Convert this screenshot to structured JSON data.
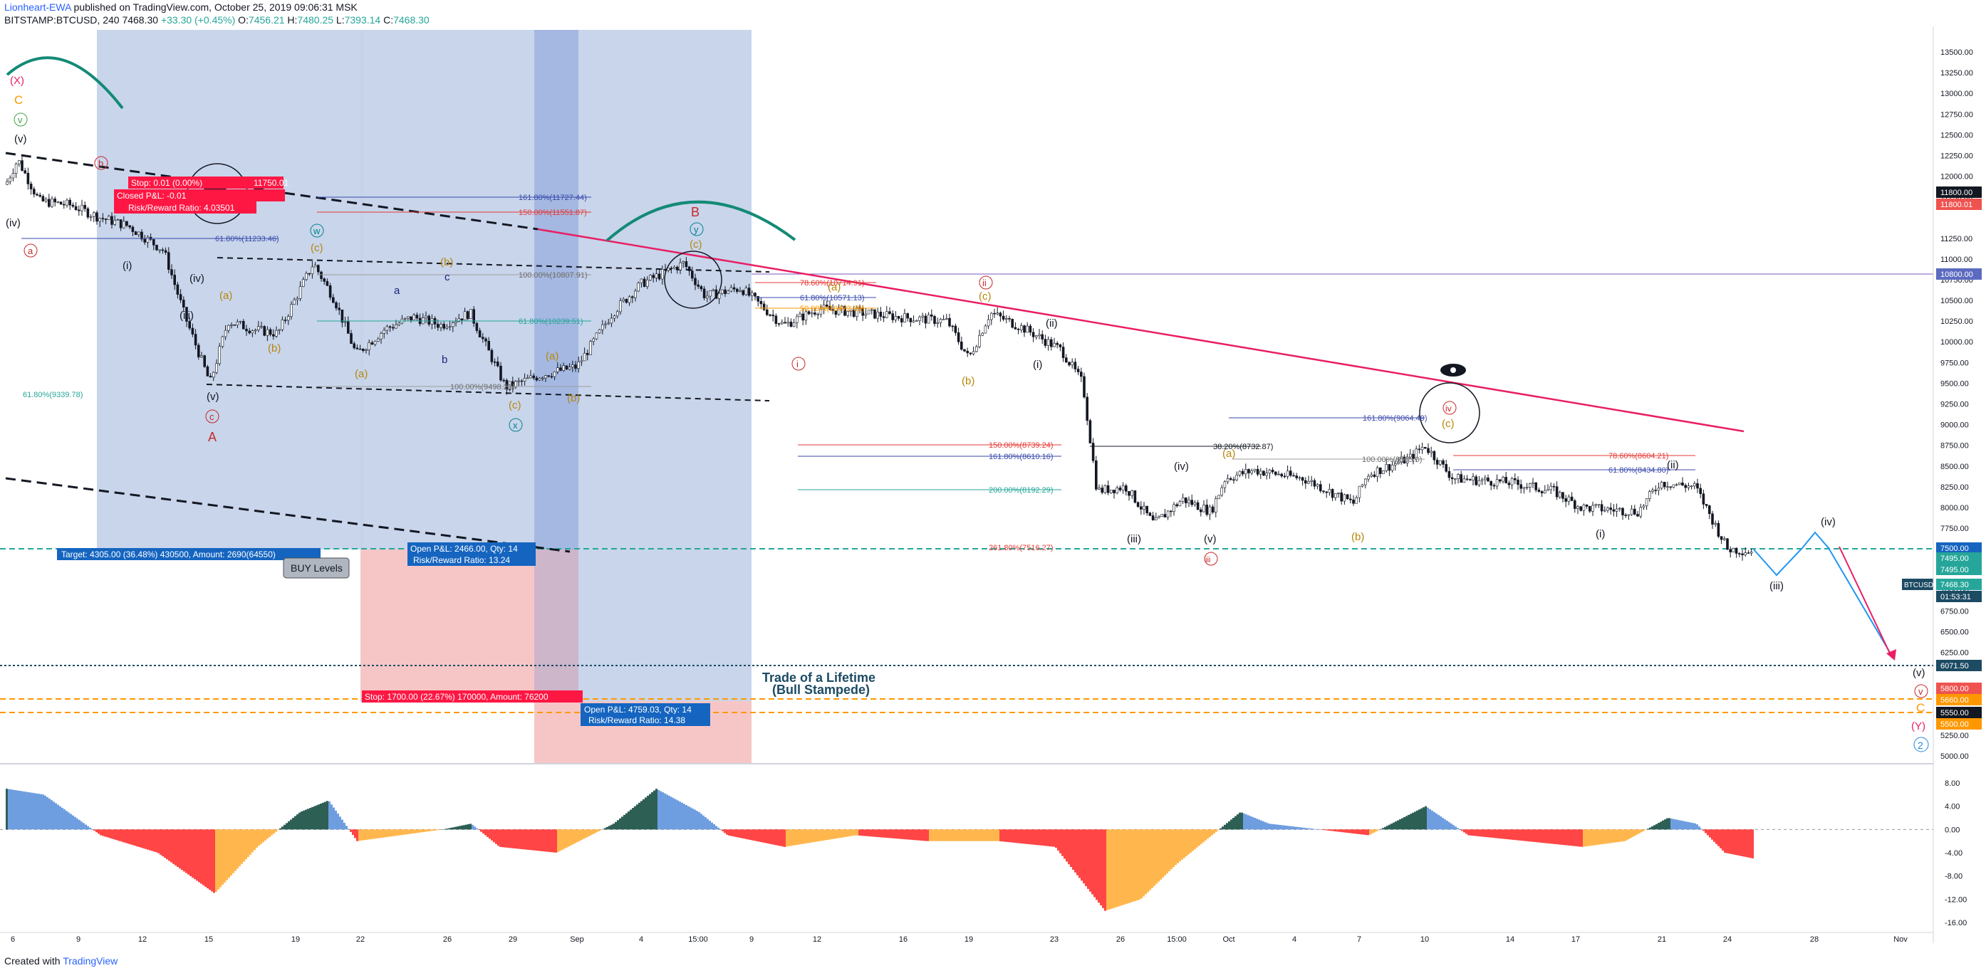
{
  "header": {
    "author": "Lionheart-EWA",
    "published_text": "published on TradingView.com, October 25, 2019 09:06:31 MSK",
    "symbol": "BITSTAMP:BTCUSD, 240",
    "last_price": "7468.30",
    "change": "+33.30 (+0.45%)",
    "o_label": "O:",
    "o_value": "7456.21",
    "h_label": "H:",
    "h_value": "7480.25",
    "l_label": "L:",
    "l_value": "7393.14",
    "c_label": "C:",
    "c_value": "7468.30"
  },
  "footer": {
    "created_with": "Created with",
    "brand": "TradingView"
  },
  "colors": {
    "up": "#26a69a",
    "down": "#ef5350",
    "candle": "#131722",
    "trendline": "#e91e63",
    "blue_zone": "#c5d3ea",
    "blue_zone_dark": "#9db3e0",
    "red_zone": "#f6c6c6",
    "label_red": "#ff0000",
    "label_blue": "#1565c0",
    "osc_green": "#2e5f55",
    "osc_blue": "#6f9ee0",
    "osc_red": "#ff4545",
    "osc_orange": "#ffb74d",
    "dashed_orange": "#ff9800",
    "dashed_teal": "#26a69a"
  },
  "price_axis": {
    "labels": [
      "13500.00",
      "13250.00",
      "13000.00",
      "12750.00",
      "12500.00",
      "12250.00",
      "12000.00",
      "11750.00",
      "11250.00",
      "11000.00",
      "10750.00",
      "10500.00",
      "10250.00",
      "10000.00",
      "9750.00",
      "9500.00",
      "9250.00",
      "9000.00",
      "8750.00",
      "8500.00",
      "8250.00",
      "8000.00",
      "7750.00",
      "7250.00",
      "7000.00",
      "6750.00",
      "6500.00",
      "6250.00",
      "5750.00",
      "5250.00",
      "5000.00"
    ],
    "tags": [
      {
        "text": "11800.00",
        "color": "#131722"
      },
      {
        "text": "11800.01",
        "color": "#ef5350"
      },
      {
        "text": "10800.00",
        "color": "#5c6bc0"
      },
      {
        "text": "7500.00",
        "color": "#1565c0"
      },
      {
        "text": "7495.00",
        "color": "#26a69a"
      },
      {
        "text": "7495.00",
        "color": "#26a69a"
      },
      {
        "text": "7468.30",
        "color": "#26a69a"
      },
      {
        "text": "01:53:31",
        "color": "#1c4b63"
      },
      {
        "text": "6071.50",
        "color": "#1c4b63"
      },
      {
        "text": "5800.00",
        "color": "#ef5350"
      },
      {
        "text": "5660.00",
        "color": "#ff9800"
      },
      {
        "text": "5550.00",
        "color": "#131722"
      },
      {
        "text": "5500.00",
        "color": "#ff9800"
      }
    ],
    "symbol_tag": "BTCUSD"
  },
  "osc_axis": {
    "labels": [
      "8.00",
      "4.00",
      "0.00",
      "-4.00",
      "-8.00",
      "-12.00",
      "-16.00"
    ]
  },
  "time_axis": {
    "labels": [
      "6",
      "9",
      "12",
      "15",
      "19",
      "22",
      "26",
      "29",
      "Sep",
      "4",
      "15:00",
      "9",
      "12",
      "16",
      "19",
      "23",
      "26",
      "15:00",
      "Oct",
      "4",
      "7",
      "10",
      "14",
      "17",
      "21",
      "24",
      "28",
      "Nov"
    ]
  },
  "waves": {
    "X": "(X)",
    "C": "C",
    "v_green": "v",
    "v_paren": "(v)",
    "iv_paren": "(iv)",
    "a_red": "a",
    "i_paren": "(i)",
    "iii_paren": "(iii)",
    "v2": "(v)",
    "c_red": "c",
    "A": "A",
    "b_red": "b",
    "iv_small": "(iv)",
    "a_orange": "(a)",
    "b_orange": "(b)",
    "w_teal": "w",
    "c_orange": "(c)",
    "a_orange2": "(a)",
    "b_blue": "b",
    "a_blue": "a",
    "c_blue": "c",
    "b_orange2": "(b)",
    "a_orange3": "(a)",
    "c_orange3": "(c)",
    "b_orange3": "(b)",
    "x_teal": "x",
    "B": "B",
    "y_teal": "y",
    "c_orange4": "(c)",
    "a_orange4": "(a)",
    "i_red": "i",
    "ii_red": "ii",
    "c_orange5": "(c)",
    "b_orange5": "(b)",
    "ii_paren": "(ii)",
    "i_paren2": "(i)",
    "iii_paren2": "(iii)",
    "iv_paren2": "(iv)",
    "v_paren3": "(v)",
    "iii_red": "iii",
    "a_orange6": "(a)",
    "b_orange6": "(b)",
    "iv_red": "iv",
    "c_orange6": "(c)",
    "ii_paren3": "(ii)",
    "i_paren3": "(i)",
    "iii_proj": "(iii)",
    "iv_proj": "(iv)",
    "v_end": "(v)",
    "v_red_end": "v",
    "c_end": "C",
    "Y_end": "(Y)",
    "two_end": "2"
  },
  "fib_labels": {
    "f1": "161.80%(11727.44)",
    "f2": "150.00%(11551.87)",
    "f3": "61.80%(11233.46)",
    "f4": "100.00%(10807.91)",
    "f5": "61.80%(10239.51)",
    "f6": "100.00%(9498.21)",
    "f7": "61.80%(9339.78)",
    "f8": "78.60%(10714.91)",
    "f9": "61.80%(10571.13)",
    "f10": "50.00%(10472.38)",
    "f11": "161.80%(9064.49)",
    "f12": "150.00%(8739.24)",
    "f13": "161.80%(8610.16)",
    "f14": "38.20%(8732.87)",
    "f15": "200.00%(8192.29)",
    "f16": "100.00%(8585.0)",
    "f17": "78.60%(8604.21)",
    "f18": "61.80%(8434.80)",
    "f19": "261.80%(7516.27)"
  },
  "positions": {
    "stop_top": "Stop: 0.01 (0.00%)",
    "stop_top_value": "11750.01",
    "closed_pl": "Closed P&L: -0.01",
    "rr_top": "Risk/Reward Ratio: 4.03501",
    "target": "Target: 4305.00 (36.48%) 430500, Amount: 2690(64550)",
    "open_pl": "Open P&L: 2466.00, Qty: 14",
    "rr_mid": "Risk/Reward Ratio: 13.24",
    "buy_levels": "BUY Levels",
    "stop_bottom": "Stop: 1700.00 (22.67%) 170000, Amount: 76200",
    "open_pl2": "Open P&L: 4759.03, Qty: 14",
    "rr_bottom": "Risk/Reward Ratio: 14.38",
    "trade_title": "Trade of a Lifetime",
    "trade_sub": "(Bull Stampede)"
  }
}
